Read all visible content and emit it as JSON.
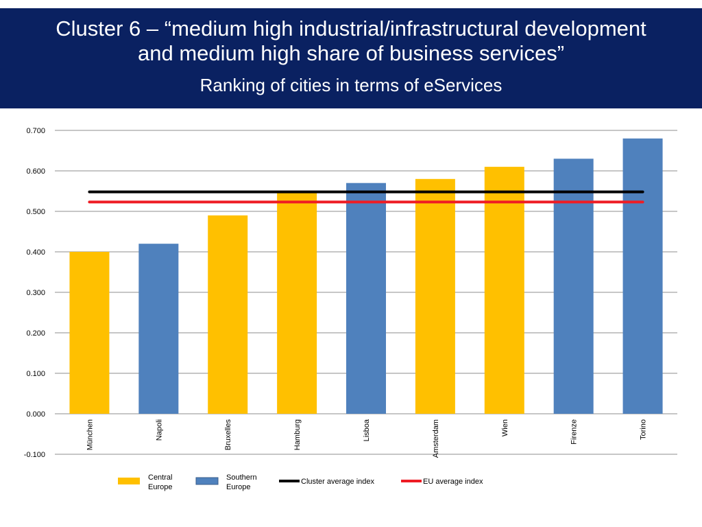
{
  "header": {
    "title_line1": "Cluster 6 – “medium high industrial/infrastructural development",
    "title_line2": "and medium high share of business services”",
    "subtitle": "Ranking of cities in terms of eServices"
  },
  "colors": {
    "banner": "#0a2161",
    "central_europe": "#ffc000",
    "southern_europe": "#4f81bd",
    "cluster_avg": "#000000",
    "eu_avg": "#ee1c24",
    "grid": "#8c8c8c"
  },
  "chart_data": {
    "type": "bar",
    "categories": [
      "München",
      "Napoli",
      "Bruxelles",
      "Hamburg",
      "Lisboa",
      "Amsterdam",
      "Wien",
      "Firenze",
      "Torino"
    ],
    "values": [
      0.4,
      0.42,
      0.49,
      0.55,
      0.57,
      0.58,
      0.61,
      0.63,
      0.68
    ],
    "groups": [
      "Central Europe",
      "Southern Europe",
      "Central Europe",
      "Central Europe",
      "Southern Europe",
      "Central Europe",
      "Central Europe",
      "Southern Europe",
      "Southern Europe"
    ],
    "reference_lines": [
      {
        "name": "Cluster average index",
        "value": 0.548
      },
      {
        "name": "EU average index",
        "value": 0.523
      }
    ],
    "ylim": [
      -0.1,
      0.7
    ],
    "yticks": [
      "0.700",
      "0.600",
      "0.500",
      "0.400",
      "0.300",
      "0.200",
      "0.100",
      "0.000",
      "-0.100"
    ],
    "ytick_values": [
      0.7,
      0.6,
      0.5,
      0.4,
      0.3,
      0.2,
      0.1,
      0.0,
      -0.1
    ],
    "grid": true,
    "legend": {
      "position": "bottom",
      "entries": [
        {
          "line1": "Central",
          "line2": "Europe",
          "kind": "bar",
          "group": "Central Europe"
        },
        {
          "line1": "Southern",
          "line2": "Europe",
          "kind": "bar",
          "group": "Southern Europe"
        },
        {
          "line1": "Cluster average index",
          "kind": "line",
          "ref": 0
        },
        {
          "line1": "EU average index",
          "kind": "line",
          "ref": 1
        }
      ]
    }
  }
}
